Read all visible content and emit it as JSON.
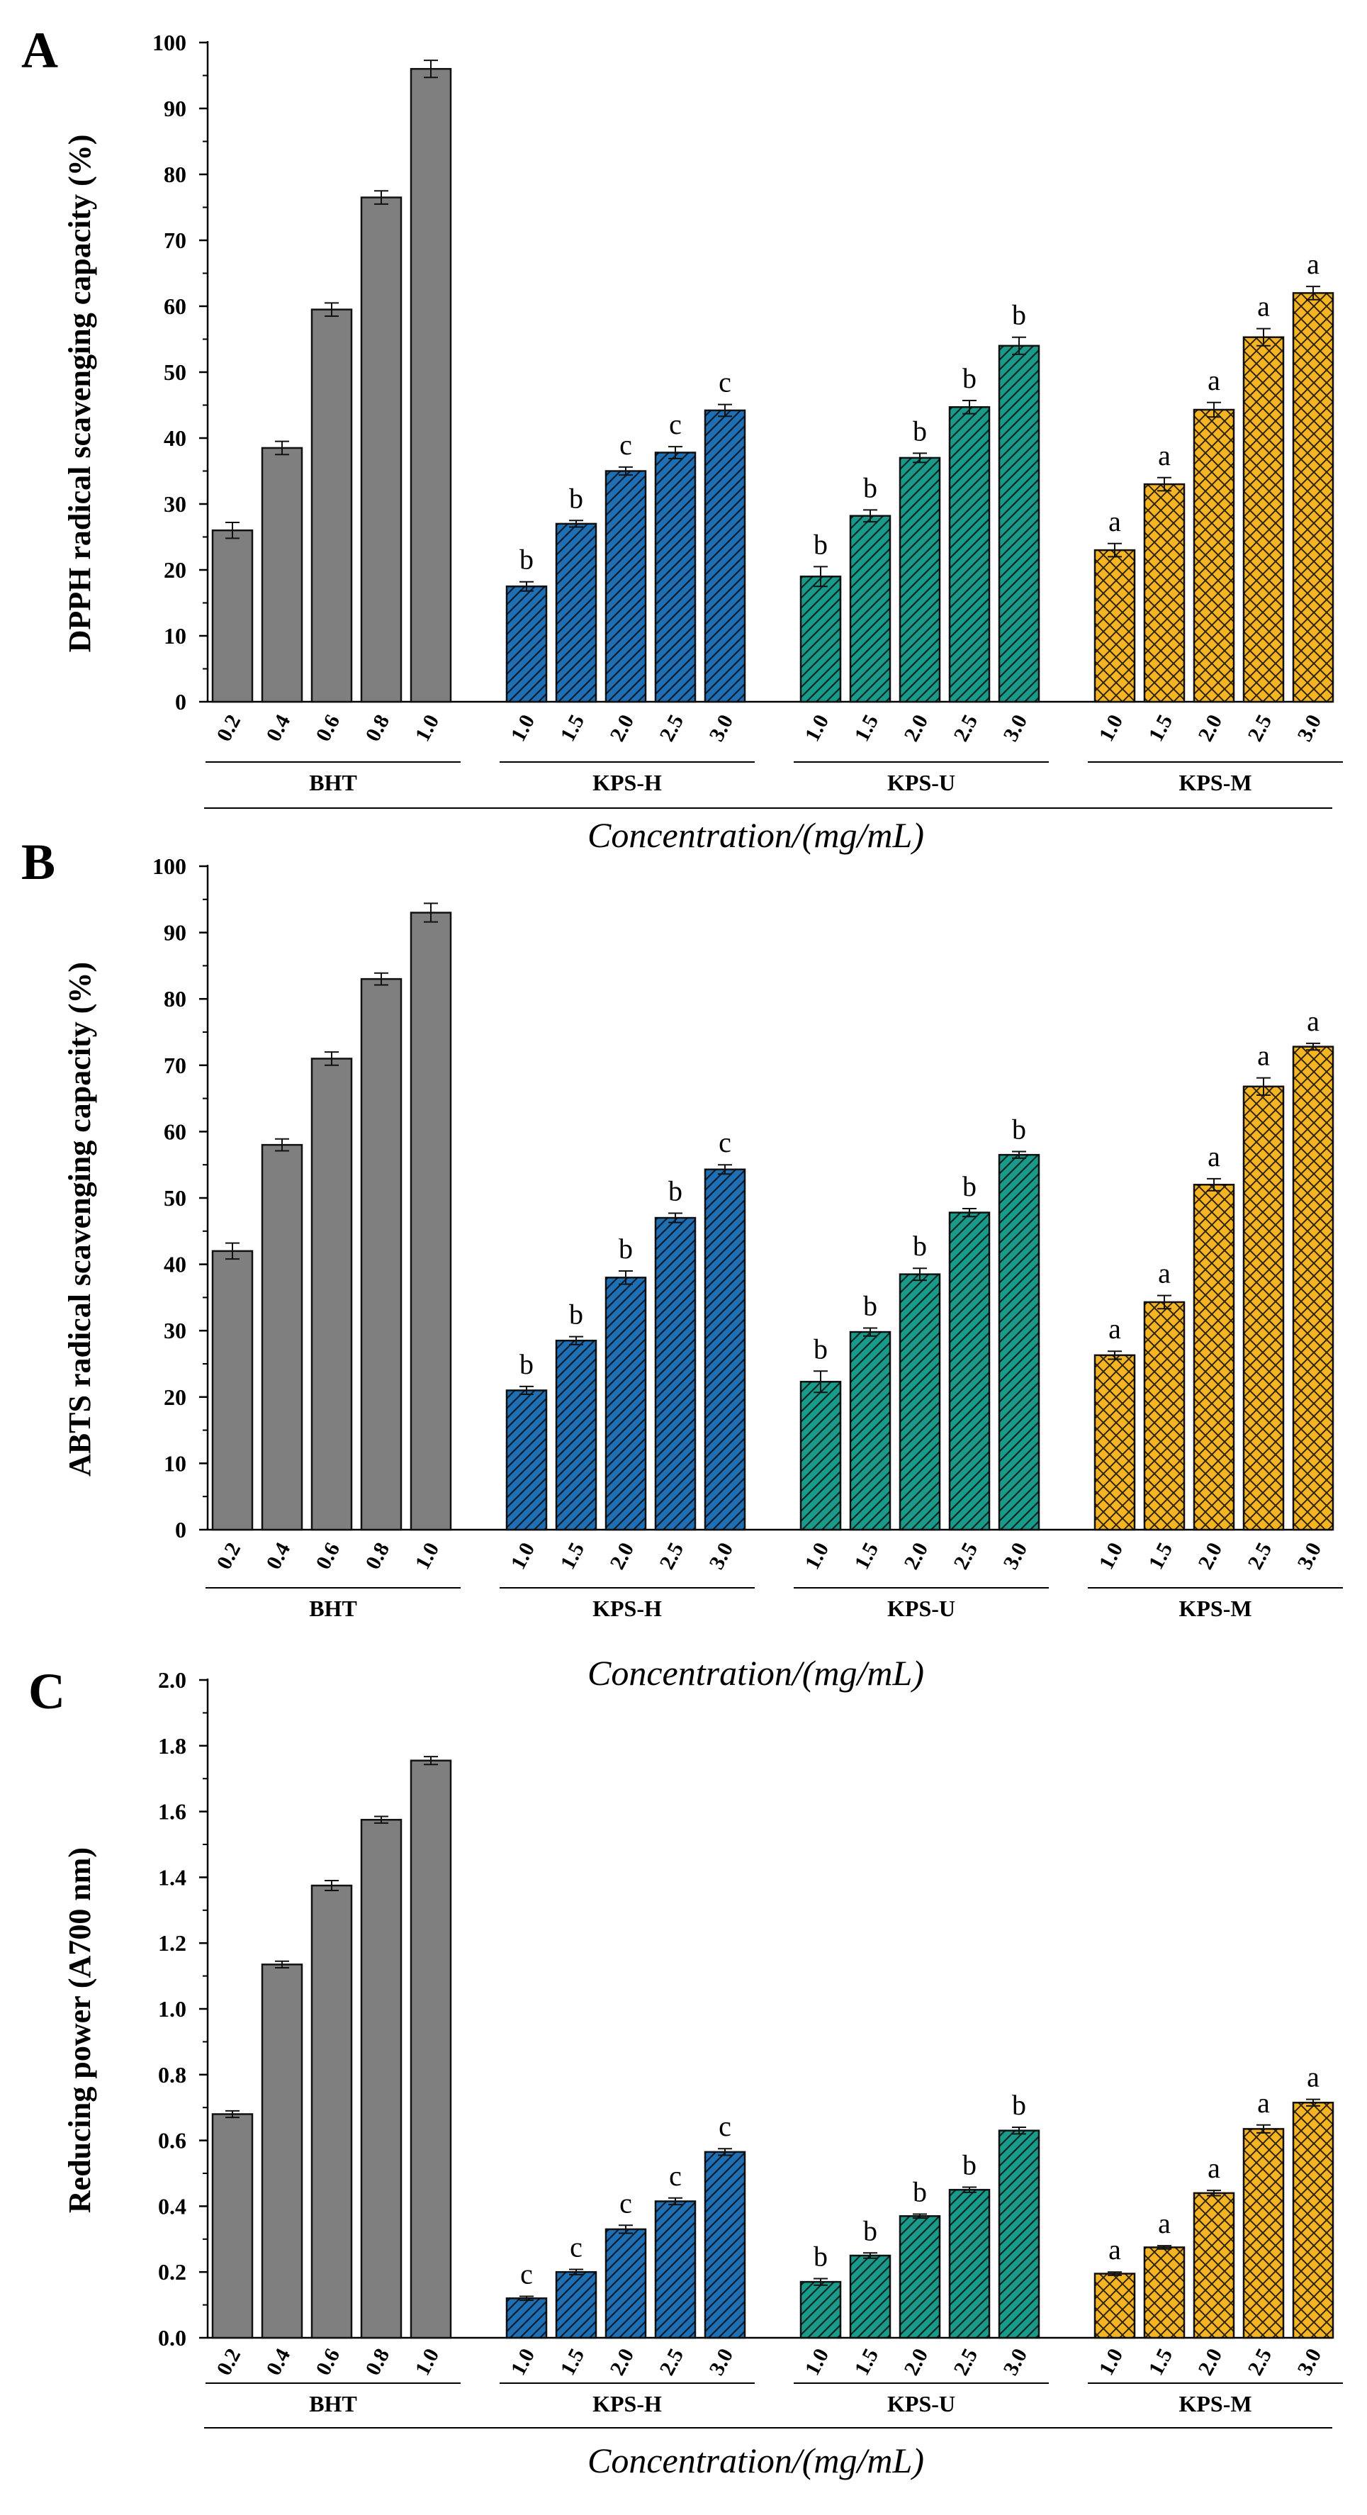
{
  "colors": {
    "BHT": "#7f7f7f",
    "KPS-H": "#1f6fb4",
    "KPS-U": "#1a9a8a",
    "KPS-M": "#f5b422",
    "axis": "#000000"
  },
  "chart_data": [
    {
      "type": "bar",
      "panel_label": "A",
      "ylabel": "DPPH radical scavenging capacity (%)",
      "xlabel": "Concentration/(mg/mL)",
      "ylim": [
        0,
        100
      ],
      "yticks": [
        "0",
        "10",
        "20",
        "30",
        "40",
        "50",
        "60",
        "70",
        "80",
        "90",
        "100"
      ],
      "groups": [
        {
          "name": "BHT",
          "pattern": "solid",
          "categories": [
            "0.2",
            "0.4",
            "0.6",
            "0.8",
            "1.0"
          ],
          "values": [
            26,
            38.5,
            59.5,
            76.5,
            96
          ],
          "errors": [
            1.2,
            1.0,
            1.0,
            1.0,
            1.3
          ],
          "letters": [
            "",
            "",
            "",
            "",
            ""
          ]
        },
        {
          "name": "KPS-H",
          "pattern": "hatch",
          "categories": [
            "1.0",
            "1.5",
            "2.0",
            "2.5",
            "3.0"
          ],
          "values": [
            17.5,
            27,
            35,
            37.8,
            44.2
          ],
          "errors": [
            0.7,
            0.5,
            0.6,
            0.9,
            0.9
          ],
          "letters": [
            "b",
            "b",
            "c",
            "c",
            "c"
          ]
        },
        {
          "name": "KPS-U",
          "pattern": "hatch",
          "categories": [
            "1.0",
            "1.5",
            "2.0",
            "2.5",
            "3.0"
          ],
          "values": [
            19,
            28.2,
            37,
            44.7,
            54
          ],
          "errors": [
            1.5,
            0.9,
            0.7,
            1.0,
            1.3
          ],
          "letters": [
            "b",
            "b",
            "b",
            "b",
            "b"
          ]
        },
        {
          "name": "KPS-M",
          "pattern": "crosshatch",
          "categories": [
            "1.0",
            "1.5",
            "2.0",
            "2.5",
            "3.0"
          ],
          "values": [
            23,
            33,
            44.3,
            55.3,
            62
          ],
          "errors": [
            1.0,
            1.0,
            1.1,
            1.3,
            1.0
          ],
          "letters": [
            "a",
            "a",
            "a",
            "a",
            "a"
          ]
        }
      ]
    },
    {
      "type": "bar",
      "panel_label": "B",
      "ylabel": "ABTS radical scavenging capacity (%)",
      "xlabel": "Concentration/(mg/mL)",
      "ylim": [
        0,
        100
      ],
      "yticks": [
        "0",
        "10",
        "20",
        "30",
        "40",
        "50",
        "60",
        "70",
        "80",
        "90",
        "100"
      ],
      "groups": [
        {
          "name": "BHT",
          "pattern": "solid",
          "categories": [
            "0.2",
            "0.4",
            "0.6",
            "0.8",
            "1.0"
          ],
          "values": [
            42,
            58,
            71,
            83,
            93
          ],
          "errors": [
            1.2,
            0.9,
            1.0,
            0.9,
            1.4
          ],
          "letters": [
            "",
            "",
            "",
            "",
            ""
          ]
        },
        {
          "name": "KPS-H",
          "pattern": "hatch",
          "categories": [
            "1.0",
            "1.5",
            "2.0",
            "2.5",
            "3.0"
          ],
          "values": [
            21,
            28.5,
            38,
            47,
            54.3
          ],
          "errors": [
            0.6,
            0.6,
            1.0,
            0.7,
            0.7
          ],
          "letters": [
            "b",
            "b",
            "b",
            "b",
            "c"
          ]
        },
        {
          "name": "KPS-U",
          "pattern": "hatch",
          "categories": [
            "1.0",
            "1.5",
            "2.0",
            "2.5",
            "3.0"
          ],
          "values": [
            22.3,
            29.8,
            38.5,
            47.8,
            56.5
          ],
          "errors": [
            1.6,
            0.6,
            0.9,
            0.6,
            0.5
          ],
          "letters": [
            "b",
            "b",
            "b",
            "b",
            "b"
          ]
        },
        {
          "name": "KPS-M",
          "pattern": "crosshatch",
          "categories": [
            "1.0",
            "1.5",
            "2.0",
            "2.5",
            "3.0"
          ],
          "values": [
            26.3,
            34.3,
            52,
            66.8,
            72.8
          ],
          "errors": [
            0.6,
            1.0,
            0.9,
            1.3,
            0.5
          ],
          "letters": [
            "a",
            "a",
            "a",
            "a",
            "a"
          ]
        }
      ]
    },
    {
      "type": "bar",
      "panel_label": "C",
      "ylabel": "Reducing power  (A700 nm)",
      "xlabel": "Concentration/(mg/mL)",
      "ylim": [
        0,
        2.0
      ],
      "yticks": [
        "0.0",
        "0.2",
        "0.4",
        "0.6",
        "0.8",
        "1.0",
        "1.2",
        "1.4",
        "1.6",
        "1.8",
        "2.0"
      ],
      "groups": [
        {
          "name": "BHT",
          "pattern": "solid",
          "categories": [
            "0.2",
            "0.4",
            "0.6",
            "0.8",
            "1.0"
          ],
          "values": [
            0.68,
            1.135,
            1.375,
            1.575,
            1.755
          ],
          "errors": [
            0.01,
            0.01,
            0.015,
            0.01,
            0.012
          ],
          "letters": [
            "",
            "",
            "",
            "",
            ""
          ]
        },
        {
          "name": "KPS-H",
          "pattern": "hatch",
          "categories": [
            "1.0",
            "1.5",
            "2.0",
            "2.5",
            "3.0"
          ],
          "values": [
            0.12,
            0.2,
            0.33,
            0.415,
            0.565
          ],
          "errors": [
            0.006,
            0.008,
            0.012,
            0.01,
            0.01
          ],
          "letters": [
            "c",
            "c",
            "c",
            "c",
            "c"
          ]
        },
        {
          "name": "KPS-U",
          "pattern": "hatch",
          "categories": [
            "1.0",
            "1.5",
            "2.0",
            "2.5",
            "3.0"
          ],
          "values": [
            0.17,
            0.25,
            0.37,
            0.45,
            0.63
          ],
          "errors": [
            0.01,
            0.008,
            0.006,
            0.008,
            0.01
          ],
          "letters": [
            "b",
            "b",
            "b",
            "b",
            "b"
          ]
        },
        {
          "name": "KPS-M",
          "pattern": "crosshatch",
          "categories": [
            "1.0",
            "1.5",
            "2.0",
            "2.5",
            "3.0"
          ],
          "values": [
            0.195,
            0.275,
            0.44,
            0.635,
            0.715
          ],
          "errors": [
            0.005,
            0.005,
            0.008,
            0.012,
            0.01
          ],
          "letters": [
            "a",
            "a",
            "a",
            "a",
            "a"
          ]
        }
      ]
    }
  ]
}
